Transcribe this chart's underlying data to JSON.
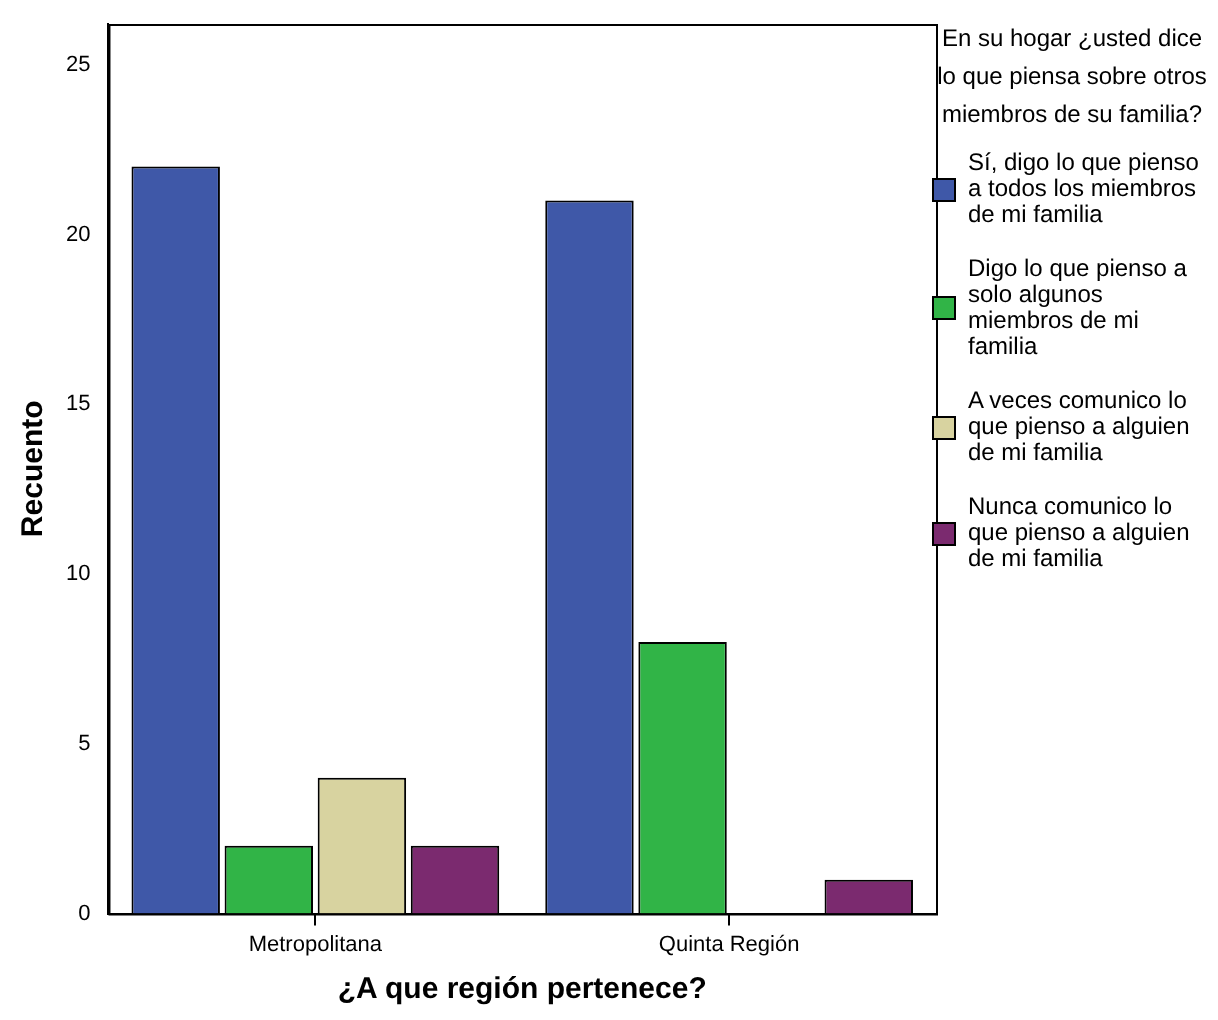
{
  "chart_data": {
    "type": "bar",
    "xlabel": "¿A que región pertenece?",
    "ylabel": "Recuento",
    "legend_title": "En su hogar ¿usted dice lo que piensa sobre otros miembros de su familia?",
    "legend": "right",
    "grid": false,
    "categories": [
      "Metropolitana",
      "Quinta Región"
    ],
    "ylim": [
      0,
      26.2
    ],
    "yticks": [
      0,
      5,
      10,
      15,
      20,
      25
    ],
    "series": [
      {
        "name": "Sí, digo lo que pienso a todos los miembros de mi familia",
        "color": "#3f58a8",
        "values": [
          22,
          21
        ]
      },
      {
        "name": "Digo lo que pienso a solo algunos miembros de mi familia",
        "color": "#31b447",
        "values": [
          2,
          8
        ]
      },
      {
        "name": "A veces comunico lo que pienso a alguien de mi familia",
        "color": "#d8d3a0",
        "values": [
          4,
          0
        ]
      },
      {
        "name": "Nunca comunico lo que pienso a alguien de mi familia",
        "color": "#7b2a6f",
        "values": [
          2,
          1
        ]
      }
    ]
  }
}
